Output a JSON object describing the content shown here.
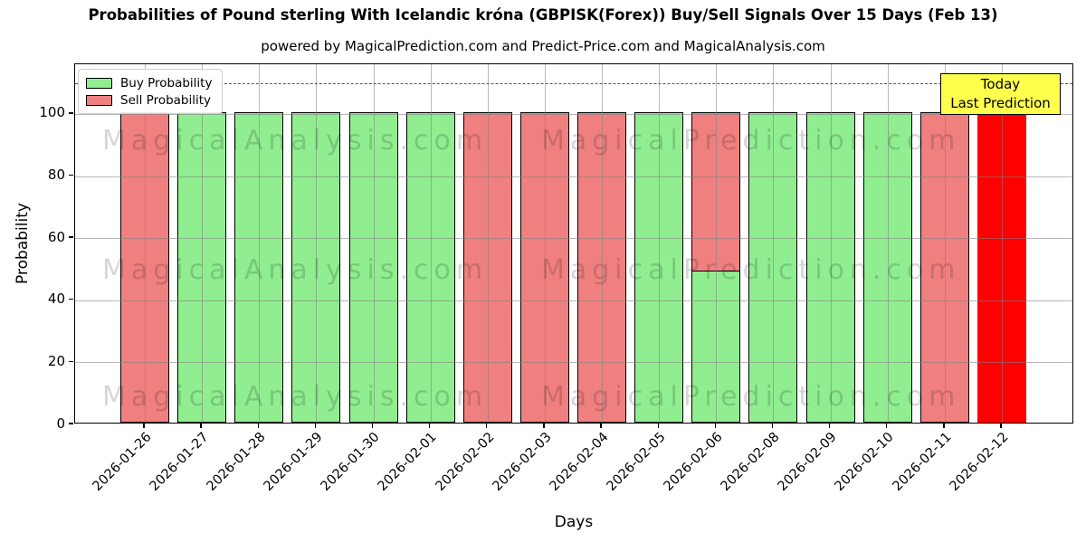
{
  "title": "Probabilities of Pound sterling With Icelandic króna (GBPISK(Forex)) Buy/Sell Signals Over 15 Days (Feb 13)",
  "subtitle": "powered by MagicalPrediction.com and Predict-Price.com and MagicalAnalysis.com",
  "legend": {
    "items": [
      {
        "label": "Buy Probability",
        "color": "#90EE90"
      },
      {
        "label": "Sell Probability",
        "color": "#F08080"
      }
    ]
  },
  "annotation": {
    "line1": "Today",
    "line2": "Last Prediction",
    "bg_color": "#FFFF4D",
    "border_color": "#000000"
  },
  "watermarks": {
    "left": "MagicalAnalysis.com",
    "right": "MagicalPrediction.com",
    "rows": 3
  },
  "axes": {
    "xlabel": "Days",
    "ylabel": "Probability",
    "yticks": [
      0,
      20,
      40,
      60,
      80,
      100
    ],
    "ylim": [
      0,
      116
    ],
    "dashed_line_y": 110,
    "grid_color": "#b0b0b0",
    "dashed_line_color": "#555555"
  },
  "chart_data": {
    "type": "bar",
    "stacked": true,
    "title": "Probabilities of Pound sterling With Icelandic króna (GBPISK(Forex)) Buy/Sell Signals Over 15 Days (Feb 13)",
    "xlabel": "Days",
    "ylabel": "Probability",
    "ylim": [
      0,
      116
    ],
    "grid": true,
    "legend_position": "upper left",
    "categories": [
      "2026-01-26",
      "2026-01-27",
      "2026-01-28",
      "2026-01-29",
      "2026-01-30",
      "2026-02-01",
      "2026-02-02",
      "2026-02-03",
      "2026-02-04",
      "2026-02-05",
      "2026-02-06",
      "2026-02-08",
      "2026-02-09",
      "2026-02-10",
      "2026-02-11",
      "2026-02-12"
    ],
    "series": [
      {
        "name": "Buy Probability",
        "color": "#90EE90",
        "edge_color": "#000000",
        "values": [
          0,
          100,
          100,
          100,
          100,
          100,
          0,
          0,
          0,
          100,
          49,
          100,
          100,
          100,
          0,
          0
        ]
      },
      {
        "name": "Sell Probability",
        "color": "#F08080",
        "edge_color": "#000000",
        "values": [
          100,
          0,
          0,
          0,
          0,
          0,
          100,
          100,
          100,
          0,
          51,
          0,
          0,
          0,
          100,
          0
        ]
      },
      {
        "name": "Today Last Prediction",
        "color": "#FF0000",
        "edge_color": "#FF0000",
        "values": [
          0,
          0,
          0,
          0,
          0,
          0,
          0,
          0,
          0,
          0,
          0,
          0,
          0,
          0,
          0,
          100
        ]
      }
    ]
  }
}
